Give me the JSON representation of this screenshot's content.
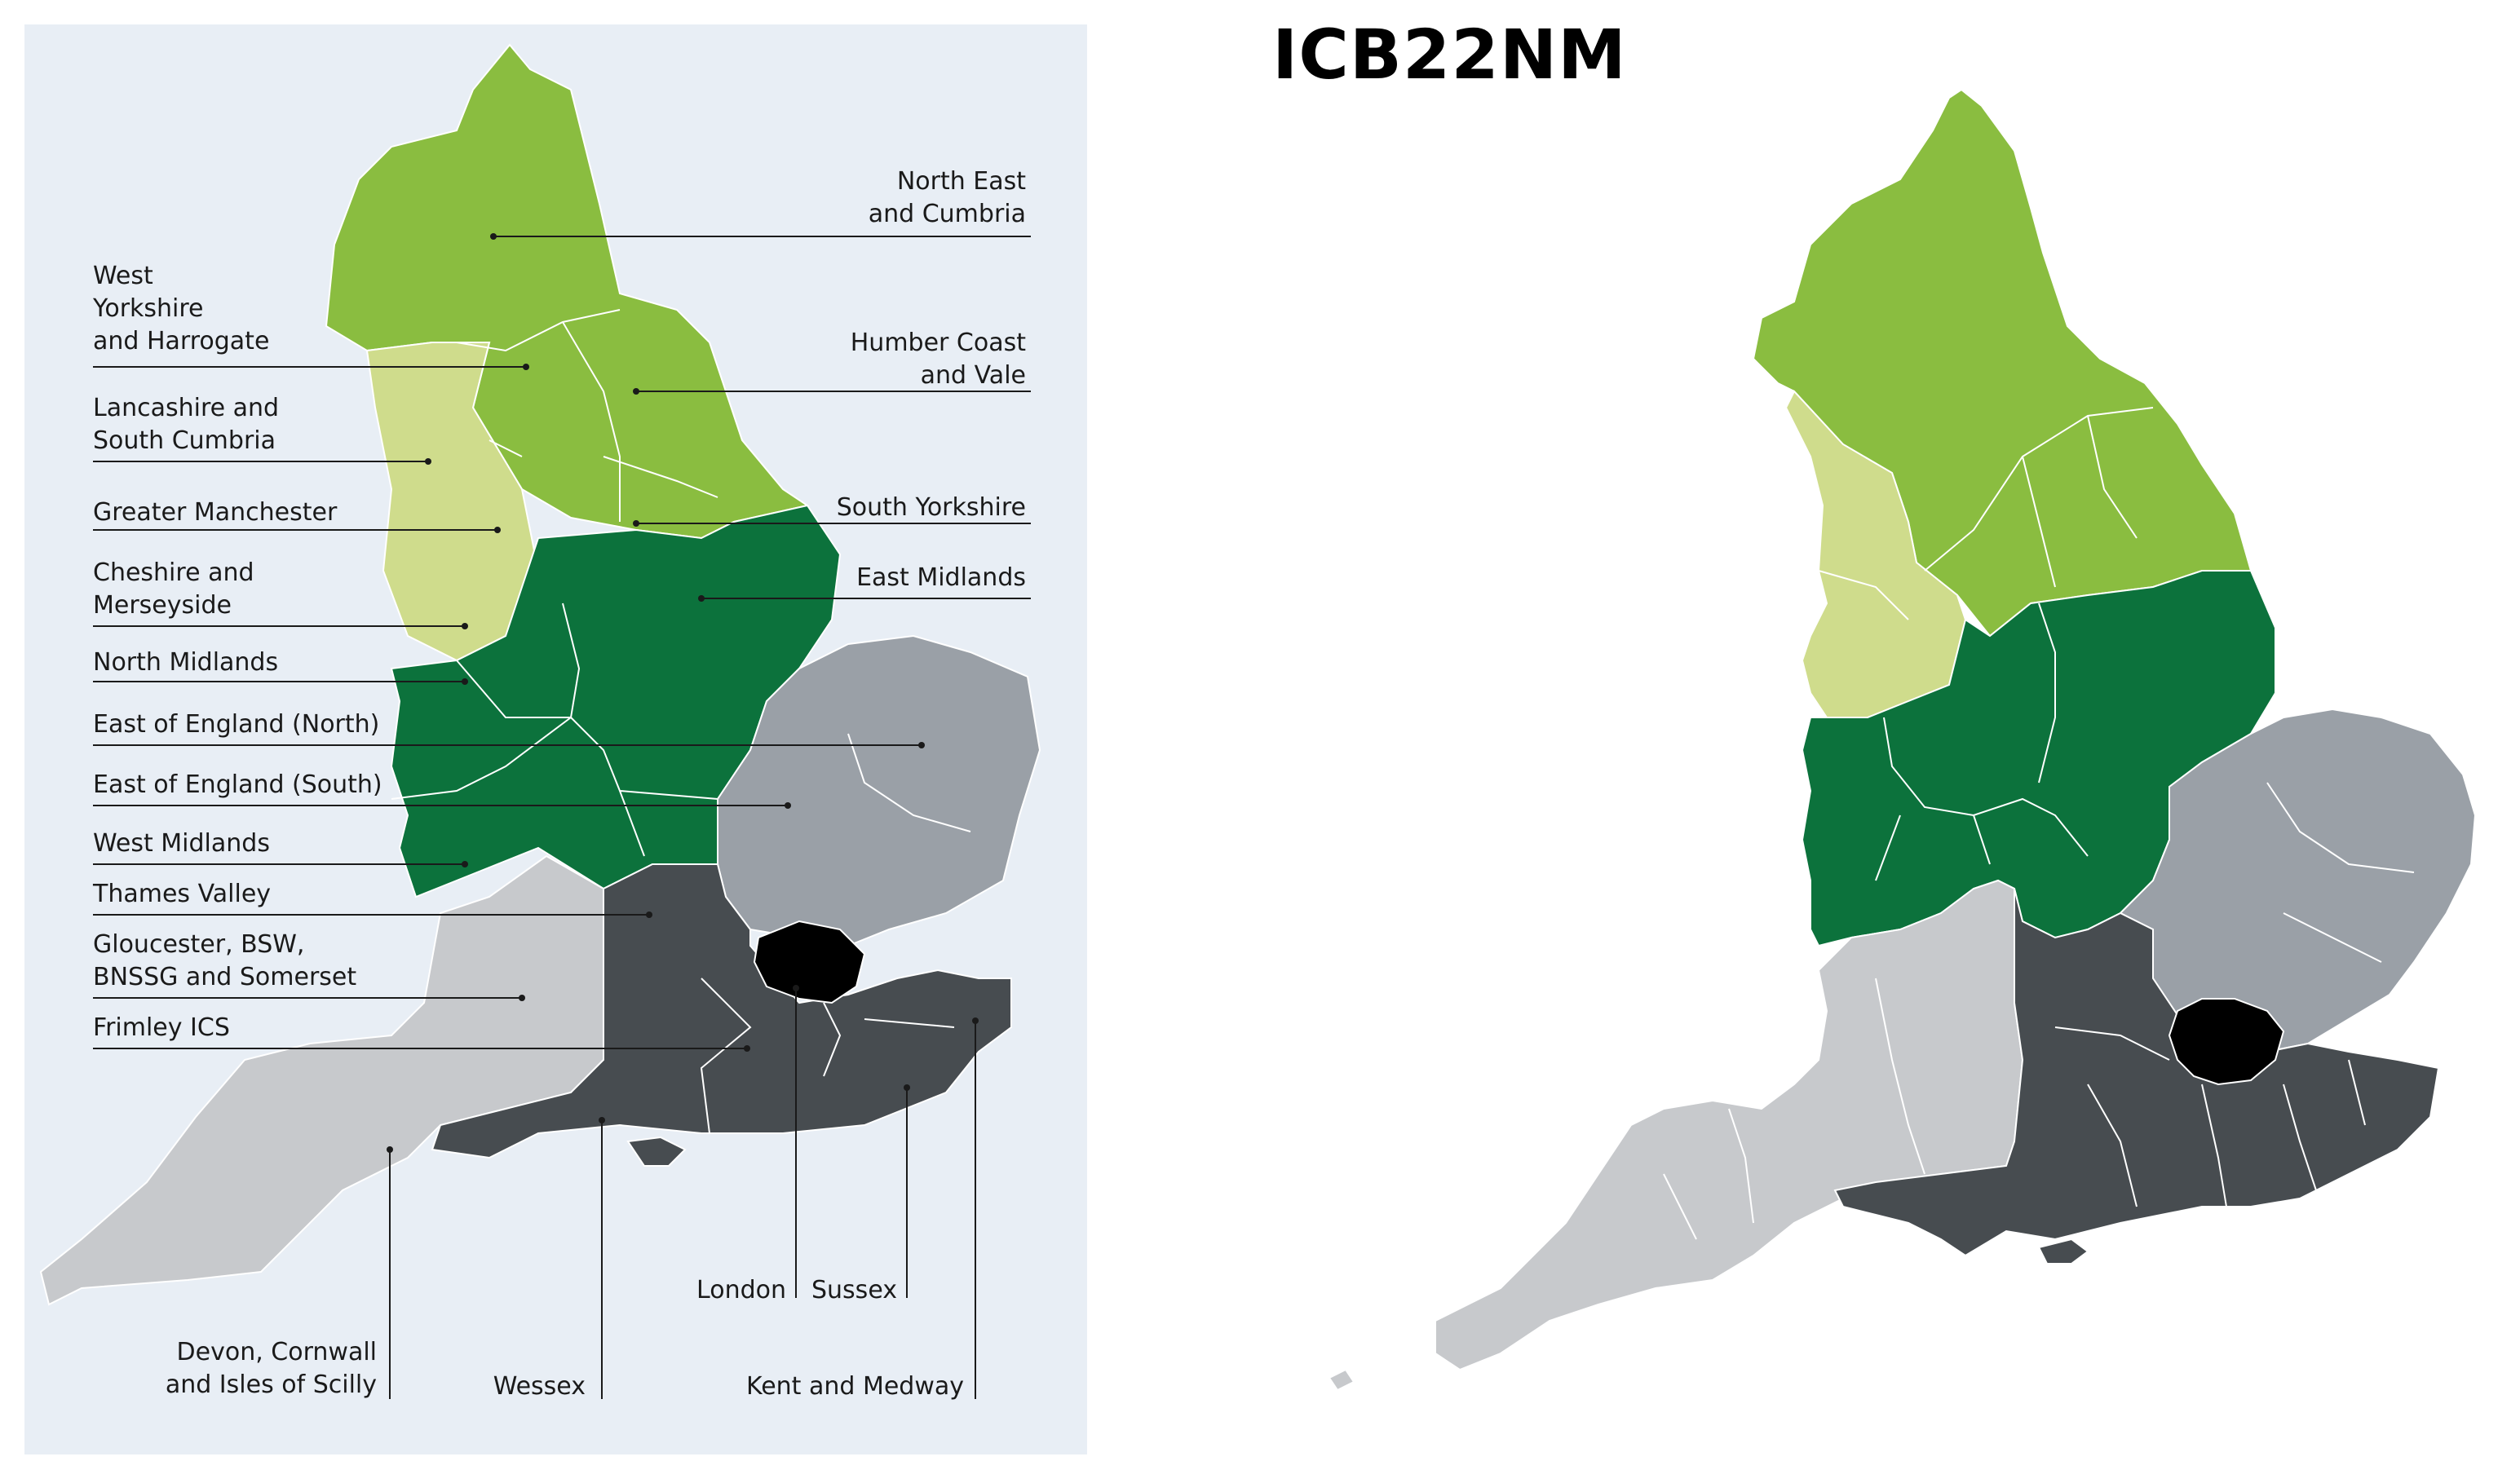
{
  "title": "ICB22NM",
  "colors": {
    "panel_bg": "#e8eef5",
    "north_east": "#8abd40",
    "north_west": "#cfdc8c",
    "midlands": "#0c723c",
    "east_of_england": "#9aa0a7",
    "south_east": "#474c50",
    "london": "#000000",
    "south_west": "#c7c9cc",
    "boundary": "#ffffff"
  },
  "regions": {
    "north_east": "North East and Cumbria",
    "west_yorkshire": "West Yorkshire and Harrogate",
    "humber": "Humber Coast and Vale",
    "lancashire": "Lancashire and South Cumbria",
    "greater_manchester": "Greater Manchester",
    "south_yorkshire": "South Yorkshire",
    "cheshire": "Cheshire and Merseyside",
    "east_midlands": "East Midlands",
    "north_midlands": "North Midlands",
    "east_north": "East of England (North)",
    "east_south": "East of England (South)",
    "west_midlands": "West Midlands",
    "thames_valley": "Thames Valley",
    "gloucester": "Gloucester, BSW, BNSSG and Somerset",
    "frimley": "Frimley ICS",
    "devon": "Devon, Cornwall and Isles of Scilly",
    "wessex": "Wessex",
    "london": "London",
    "sussex": "Sussex",
    "kent": "Kent and Medway"
  },
  "labels": {
    "north_east": [
      "North East",
      "and Cumbria"
    ],
    "west_yorkshire": [
      "West",
      "Yorkshire",
      "and Harrogate"
    ],
    "humber": [
      "Humber Coast",
      "and Vale"
    ],
    "lancashire": [
      "Lancashire and",
      "South Cumbria"
    ],
    "greater_manchester": [
      "Greater Manchester"
    ],
    "south_yorkshire": [
      "South Yorkshire"
    ],
    "cheshire": [
      "Cheshire and",
      "Merseyside"
    ],
    "east_midlands": [
      "East Midlands"
    ],
    "north_midlands": [
      "North Midlands"
    ],
    "east_north": [
      "East of England (North)"
    ],
    "east_south": [
      "East of England (South)"
    ],
    "west_midlands": [
      "West Midlands"
    ],
    "thames_valley": [
      "Thames Valley"
    ],
    "gloucester": [
      "Gloucester, BSW,",
      "BNSSG and Somerset"
    ],
    "frimley": [
      "Frimley ICS"
    ],
    "london": [
      "London"
    ],
    "sussex": [
      "Sussex"
    ],
    "devon": [
      "Devon, Cornwall",
      "and Isles of Scilly"
    ],
    "wessex": [
      "Wessex"
    ],
    "kent": [
      "Kent and Medway"
    ]
  }
}
